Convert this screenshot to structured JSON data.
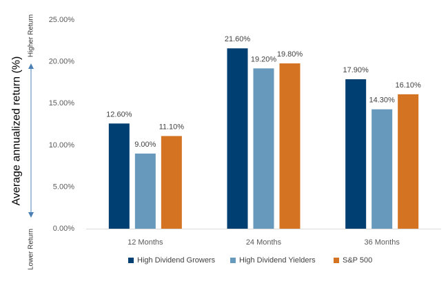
{
  "chart_data": {
    "type": "bar",
    "title": "",
    "xlabel": "",
    "ylabel": "Average annualized return (%)",
    "side_labels": {
      "top": "Higher Return",
      "bottom": "Lower Return"
    },
    "categories": [
      "12 Months",
      "24 Months",
      "36 Months"
    ],
    "ylim": [
      0,
      25
    ],
    "yticks": [
      "0.00%",
      "5.00%",
      "10.00%",
      "15.00%",
      "20.00%",
      "25.00%"
    ],
    "series": [
      {
        "name": "High Dividend Growers",
        "color": "#003f72",
        "values": [
          12.6,
          21.6,
          17.9
        ],
        "labels": [
          "12.60%",
          "21.60%",
          "17.90%"
        ]
      },
      {
        "name": "High Dividend Yielders",
        "color": "#6699bb",
        "values": [
          9.0,
          19.2,
          14.3
        ],
        "labels": [
          "9.00%",
          "19.20%",
          "14.30%"
        ]
      },
      {
        "name": "S&P 500",
        "color": "#d47322",
        "values": [
          11.1,
          19.8,
          16.1
        ],
        "labels": [
          "11.10%",
          "19.80%",
          "16.10%"
        ]
      }
    ],
    "grid": false,
    "legend_position": "bottom"
  }
}
